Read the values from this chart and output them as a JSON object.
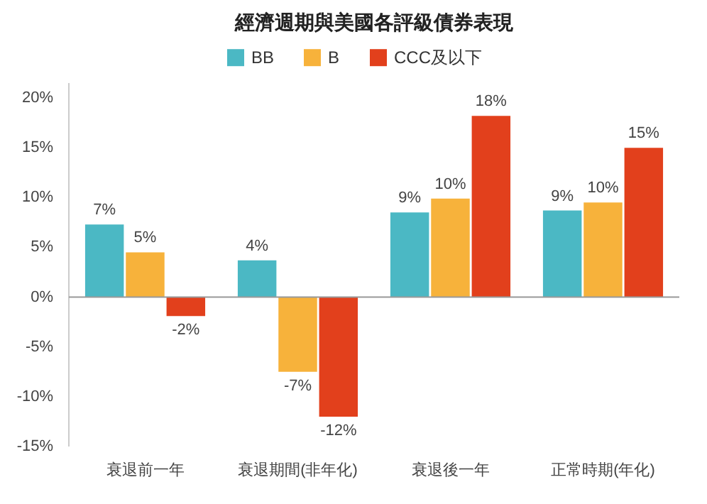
{
  "chart_data": {
    "type": "bar",
    "title": "經濟週期與美國各評級債券表現",
    "categories": [
      "衰退前一年",
      "衰退期間(非年化)",
      "衰退後一年",
      "正常時期(年化)"
    ],
    "series": [
      {
        "name": "BB",
        "color": "#4bb8c4",
        "values": [
          7.3,
          3.7,
          8.5,
          8.7
        ],
        "value_labels": [
          "7%",
          "4%",
          "9%",
          "9%"
        ]
      },
      {
        "name": "B",
        "color": "#f7b23b",
        "values": [
          4.5,
          -7.5,
          9.9,
          9.5
        ],
        "value_labels": [
          "5%",
          "-7%",
          "10%",
          "10%"
        ]
      },
      {
        "name": "CCC及以下",
        "color": "#e2401c",
        "values": [
          -1.9,
          -12.0,
          18.2,
          15.0
        ],
        "value_labels": [
          "-2%",
          "-12%",
          "18%",
          "15%"
        ]
      }
    ],
    "ylim": [
      -15,
      21.5
    ],
    "yticks": [
      {
        "value": -15,
        "label": "-15%"
      },
      {
        "value": -10,
        "label": "-10%"
      },
      {
        "value": -5,
        "label": "-5%"
      },
      {
        "value": 0,
        "label": "0%"
      },
      {
        "value": 5,
        "label": "5%"
      },
      {
        "value": 10,
        "label": "10%"
      },
      {
        "value": 15,
        "label": "15%"
      },
      {
        "value": 20,
        "label": "20%"
      }
    ],
    "ref_lines": [
      {
        "axis": "y",
        "value": 0,
        "color": "#999999"
      }
    ],
    "legend": "top",
    "grid": false
  }
}
